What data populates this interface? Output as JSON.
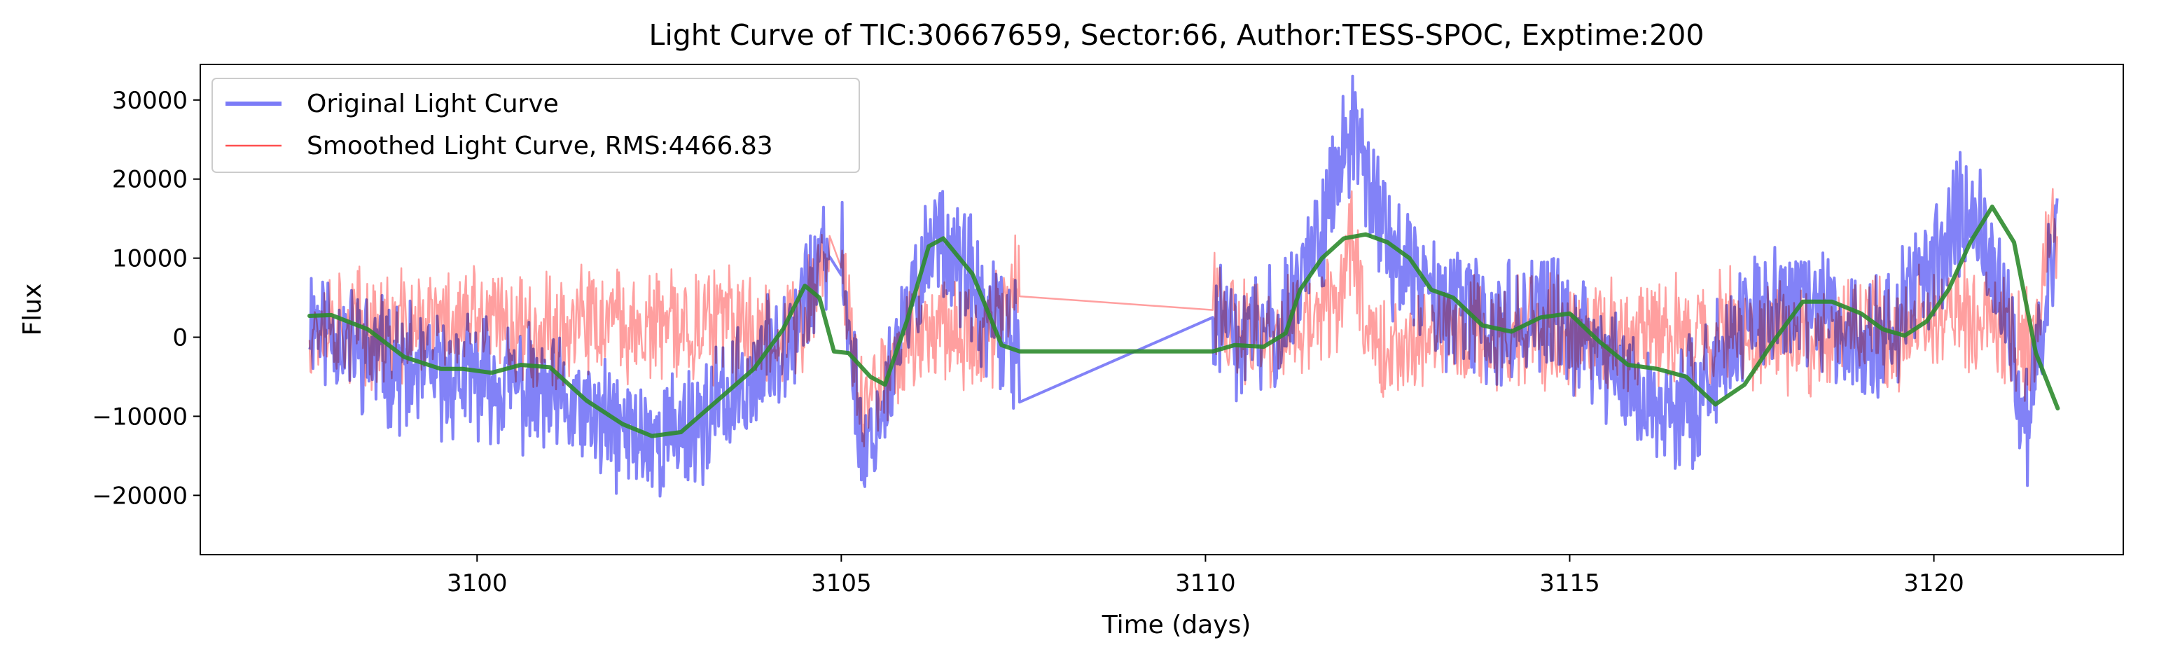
{
  "chart_data": {
    "type": "line",
    "title": "Light Curve of TIC:30667659, Sector:66, Author:TESS-SPOC, Exptime:200",
    "xlabel": "Time (days)",
    "ylabel": "Flux",
    "xlim": [
      3096.2,
      3122.6
    ],
    "ylim": [
      -27500,
      34500
    ],
    "xticks": [
      3100,
      3105,
      3110,
      3115,
      3120
    ],
    "yticks": [
      -20000,
      -10000,
      0,
      10000,
      20000,
      30000
    ],
    "xtick_labels": [
      "3100",
      "3105",
      "3110",
      "3115",
      "3120"
    ],
    "ytick_labels": [
      "−20000",
      "−10000",
      "0",
      "10000",
      "20000",
      "30000"
    ],
    "grid": false,
    "legend_position": "upper-left",
    "segments": [
      [
        3097.7,
        3104.85
      ],
      [
        3105.0,
        3107.45
      ],
      [
        3110.1,
        3121.7
      ]
    ],
    "series": [
      {
        "name": "Original Light Curve",
        "color": "#7b7bf7",
        "style": "thick noisy line",
        "x": [
          3097.7,
          3098.0,
          3098.5,
          3099.0,
          3099.5,
          3100.0,
          3100.5,
          3101.0,
          3101.5,
          3102.0,
          3102.5,
          3103.0,
          3103.5,
          3104.0,
          3104.5,
          3104.85,
          3105.0,
          3105.3,
          3105.6,
          3106.0,
          3106.3,
          3106.6,
          3107.0,
          3107.45,
          3110.1,
          3110.5,
          3111.0,
          3111.5,
          3111.8,
          3112.0,
          3112.3,
          3112.6,
          3113.0,
          3113.5,
          3114.0,
          3114.5,
          3115.0,
          3115.5,
          3116.0,
          3116.5,
          3117.0,
          3117.5,
          3118.0,
          3118.5,
          3119.0,
          3119.5,
          3120.0,
          3120.3,
          3120.6,
          3121.0,
          3121.3,
          3121.7
        ],
        "y": [
          3000,
          1000,
          -2000,
          -4000,
          -5000,
          -5000,
          -6000,
          -8000,
          -10000,
          -12000,
          -13000,
          -11000,
          -8000,
          -3000,
          5000,
          11000,
          10000,
          -15000,
          -8000,
          5000,
          14000,
          10000,
          2000,
          -1000,
          2000,
          -500,
          1000,
          12000,
          20000,
          26000,
          18000,
          10000,
          6000,
          3000,
          1000,
          3000,
          1000,
          -3000,
          -8000,
          -10000,
          -4000,
          3000,
          4000,
          3000,
          0,
          2000,
          10000,
          16000,
          14000,
          2000,
          -12000,
          16000
        ]
      },
      {
        "name": "Smoothed Light Curve, RMS:4466.83",
        "color": "#ff5050",
        "style": "thin noisy line",
        "x": [
          3097.7,
          3098.0,
          3098.5,
          3099.0,
          3099.5,
          3100.0,
          3100.5,
          3101.0,
          3101.5,
          3102.0,
          3102.5,
          3103.0,
          3103.5,
          3104.0,
          3104.5,
          3104.85,
          3105.0,
          3105.3,
          3105.6,
          3106.0,
          3106.3,
          3106.6,
          3107.0,
          3107.45,
          3110.1,
          3110.5,
          3111.0,
          3111.5,
          3111.8,
          3112.0,
          3112.3,
          3112.6,
          3113.0,
          3113.5,
          3114.0,
          3114.5,
          3115.0,
          3115.5,
          3116.0,
          3116.5,
          3117.0,
          3117.5,
          3118.0,
          3118.5,
          3119.0,
          3119.5,
          3120.0,
          3120.3,
          3120.6,
          3121.0,
          3121.3,
          3121.7
        ],
        "y": [
          2000,
          2000,
          1000,
          1000,
          2000,
          2000,
          1500,
          1000,
          1500,
          1500,
          1000,
          1500,
          1500,
          1000,
          1500,
          13000,
          9000,
          -10000,
          -4000,
          0,
          3000,
          1000,
          0,
          7000,
          3500,
          0,
          0,
          2000,
          5000,
          12000,
          0,
          -2000,
          0,
          1000,
          0,
          1000,
          0,
          500,
          0,
          500,
          1000,
          1000,
          500,
          0,
          1000,
          1000,
          2000,
          3000,
          2000,
          1000,
          -2000,
          15000
        ]
      },
      {
        "name": "",
        "color": "#2e8b2e",
        "style": "smooth trend line",
        "x": [
          3097.7,
          3098.0,
          3098.5,
          3099.0,
          3099.5,
          3099.8,
          3100.2,
          3100.6,
          3101.0,
          3101.5,
          3102.0,
          3102.4,
          3102.8,
          3103.3,
          3103.8,
          3104.2,
          3104.5,
          3104.7,
          3104.9,
          3105.1,
          3105.4,
          3105.6,
          3105.9,
          3106.2,
          3106.4,
          3106.8,
          3107.2,
          3107.45,
          3110.1,
          3110.4,
          3110.8,
          3111.1,
          3111.3,
          3111.6,
          3111.9,
          3112.2,
          3112.5,
          3112.8,
          3113.1,
          3113.4,
          3113.8,
          3114.2,
          3114.6,
          3115.0,
          3115.4,
          3115.8,
          3116.2,
          3116.6,
          3117.0,
          3117.4,
          3117.8,
          3118.2,
          3118.6,
          3119.0,
          3119.3,
          3119.6,
          3119.9,
          3120.2,
          3120.5,
          3120.8,
          3121.1,
          3121.4,
          3121.7
        ],
        "y": [
          2700,
          2800,
          1000,
          -2500,
          -4000,
          -4000,
          -4500,
          -3500,
          -3800,
          -8000,
          -11000,
          -12500,
          -12000,
          -8000,
          -4000,
          1000,
          6500,
          5000,
          -1800,
          -2000,
          -5000,
          -6000,
          2000,
          11500,
          12500,
          8000,
          -1000,
          -1800,
          -1800,
          -1000,
          -1200,
          500,
          6000,
          10000,
          12500,
          13000,
          12000,
          10000,
          6000,
          5000,
          1500,
          700,
          2500,
          3000,
          -500,
          -3500,
          -4000,
          -5000,
          -8500,
          -6000,
          -500,
          4500,
          4500,
          3000,
          1000,
          200,
          2000,
          6000,
          12000,
          16500,
          12000,
          -2000,
          -9000
        ]
      }
    ]
  }
}
